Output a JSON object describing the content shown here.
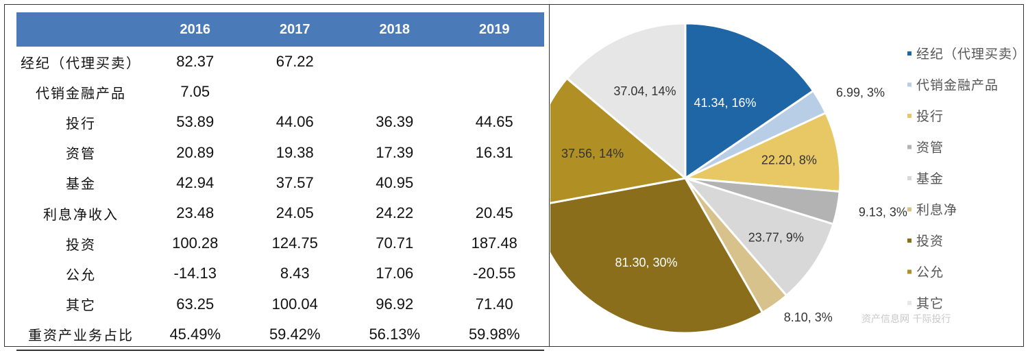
{
  "table": {
    "headers": [
      "",
      "2016",
      "2017",
      "2018",
      "2019"
    ],
    "rows": [
      {
        "label": "经纪（代理买卖）",
        "values": [
          "82.37",
          "67.22",
          "",
          ""
        ]
      },
      {
        "label": "代销金融产品",
        "values": [
          "7.05",
          "",
          "",
          ""
        ]
      },
      {
        "label": "投行",
        "values": [
          "53.89",
          "44.06",
          "36.39",
          "44.65"
        ]
      },
      {
        "label": "资管",
        "values": [
          "20.89",
          "19.38",
          "17.39",
          "16.31"
        ]
      },
      {
        "label": "基金",
        "values": [
          "42.94",
          "37.57",
          "40.95",
          ""
        ]
      },
      {
        "label": "利息净收入",
        "values": [
          "23.48",
          "24.05",
          "24.22",
          "20.45"
        ]
      },
      {
        "label": "投资",
        "values": [
          "100.28",
          "124.75",
          "70.71",
          "187.48"
        ]
      },
      {
        "label": "公允",
        "values": [
          "-14.13",
          "8.43",
          "17.06",
          "-20.55"
        ]
      },
      {
        "label": "其它",
        "values": [
          "63.25",
          "100.04",
          "96.92",
          "71.40"
        ]
      },
      {
        "label": "重资产业务占比",
        "values": [
          "45.49%",
          "59.42%",
          "56.13%",
          "59.98%"
        ]
      }
    ]
  },
  "chart_data": {
    "type": "pie",
    "title": "",
    "slices": [
      {
        "name": "经纪（代理买卖）",
        "value": 41.34,
        "pct": 16,
        "label": "41.34, 16%",
        "color": "#1f66a6",
        "label_color": "#ffffff"
      },
      {
        "name": "代销金融产品",
        "value": 6.99,
        "pct": 3,
        "label": "6.99, 3%",
        "color": "#b8cde6",
        "label_color": "#333333"
      },
      {
        "name": "投行",
        "value": 22.2,
        "pct": 8,
        "label": "22.20, 8%",
        "color": "#e8c765",
        "label_color": "#333333"
      },
      {
        "name": "资管",
        "value": 9.13,
        "pct": 3,
        "label": "9.13, 3%",
        "color": "#b3b3b3",
        "label_color": "#333333"
      },
      {
        "name": "基金",
        "value": 23.77,
        "pct": 9,
        "label": "23.77, 9%",
        "color": "#d8d8d8",
        "label_color": "#333333"
      },
      {
        "name": "利息净",
        "value": 8.1,
        "pct": 3,
        "label": "8.10, 3%",
        "color": "#d7c28c",
        "label_color": "#333333"
      },
      {
        "name": "投资",
        "value": 81.3,
        "pct": 30,
        "label": "81.30, 30%",
        "color": "#8a6e1b",
        "label_color": "#ffffff"
      },
      {
        "name": "公允",
        "value": 37.56,
        "pct": 14,
        "label": "37.56, 14%",
        "color": "#b08f24",
        "label_color": "#333333"
      },
      {
        "name": "其它",
        "value": 37.04,
        "pct": 14,
        "label": "37.04, 14%",
        "color": "#e6e6e6",
        "label_color": "#333333"
      }
    ],
    "legend": [
      "经纪（代理买卖）",
      "代销金融产品",
      "投行",
      "资管",
      "基金",
      "利息净",
      "投资",
      "公允",
      "其它"
    ],
    "legend_position": "right"
  },
  "watermark": "资产信息网 千际投行"
}
